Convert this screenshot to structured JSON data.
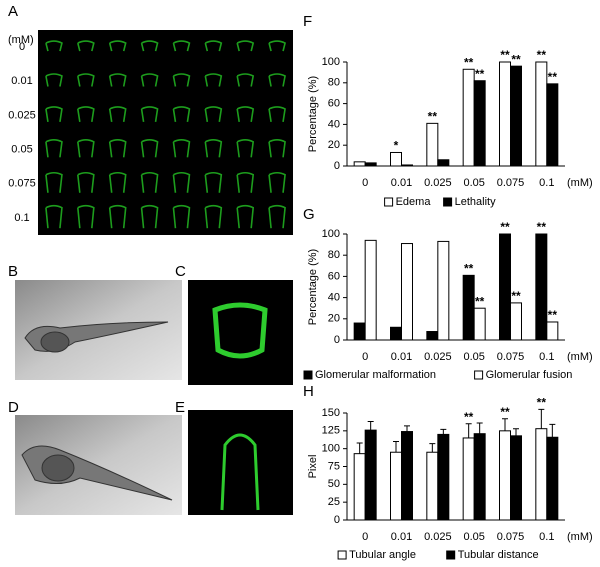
{
  "panel_labels": [
    "A",
    "B",
    "C",
    "D",
    "E",
    "F",
    "G",
    "H"
  ],
  "panel_a": {
    "unit": "(mM)",
    "rows": [
      "0",
      "0.01",
      "0.025",
      "0.05",
      "0.075",
      "0.1"
    ]
  },
  "chart_data": [
    {
      "type": "bar",
      "ylabel": "Percentage (%)",
      "x_unit": "(mM)",
      "categories": [
        "0",
        "0.01",
        "0.025",
        "0.05",
        "0.075",
        "0.1"
      ],
      "ylim": [
        0,
        100
      ],
      "yticks": [
        0,
        20,
        40,
        60,
        80,
        100
      ],
      "series": [
        {
          "name": "Edema",
          "color": "#ffffff",
          "values": [
            4,
            13,
            41,
            93,
            100,
            100
          ],
          "significance": [
            null,
            "*",
            "**",
            "**",
            "**",
            "**"
          ]
        },
        {
          "name": "Lethality",
          "color": "#000000",
          "values": [
            3,
            1,
            6,
            82,
            96,
            79
          ],
          "significance": [
            null,
            null,
            null,
            "**",
            "**",
            "**"
          ]
        }
      ]
    },
    {
      "type": "bar",
      "ylabel": "Percentage (%)",
      "x_unit": "(mM)",
      "categories": [
        "0",
        "0.01",
        "0.025",
        "0.05",
        "0.075",
        "0.1"
      ],
      "ylim": [
        0,
        100
      ],
      "yticks": [
        0,
        20,
        40,
        60,
        80,
        100
      ],
      "series": [
        {
          "name": "Glomerular malformation",
          "color": "#000000",
          "values": [
            16,
            12,
            8,
            61,
            100,
            100
          ],
          "significance": [
            null,
            null,
            null,
            "**",
            "**",
            "**"
          ]
        },
        {
          "name": "Glomerular fusion",
          "color": "#ffffff",
          "values": [
            94,
            91,
            93,
            30,
            35,
            17
          ],
          "significance": [
            null,
            null,
            null,
            "**",
            "**",
            "**"
          ]
        }
      ]
    },
    {
      "type": "bar",
      "ylabel": "Pixel",
      "x_unit": "(mM)",
      "categories": [
        "0",
        "0.01",
        "0.025",
        "0.05",
        "0.075",
        "0.1"
      ],
      "ylim": [
        0,
        150
      ],
      "yticks": [
        0,
        25,
        50,
        75,
        100,
        125,
        150
      ],
      "series": [
        {
          "name": "Tubular angle",
          "color": "#ffffff",
          "values": [
            93,
            95,
            95,
            115,
            125,
            128
          ],
          "errors": [
            15,
            15,
            12,
            20,
            17,
            27
          ],
          "significance": [
            null,
            null,
            null,
            "**",
            "**",
            "**"
          ]
        },
        {
          "name": "Tubular distance",
          "color": "#000000",
          "values": [
            126,
            124,
            120,
            121,
            118,
            116
          ],
          "errors": [
            12,
            8,
            7,
            15,
            10,
            18
          ],
          "significance": [
            null,
            null,
            null,
            null,
            null,
            null
          ]
        }
      ]
    }
  ]
}
